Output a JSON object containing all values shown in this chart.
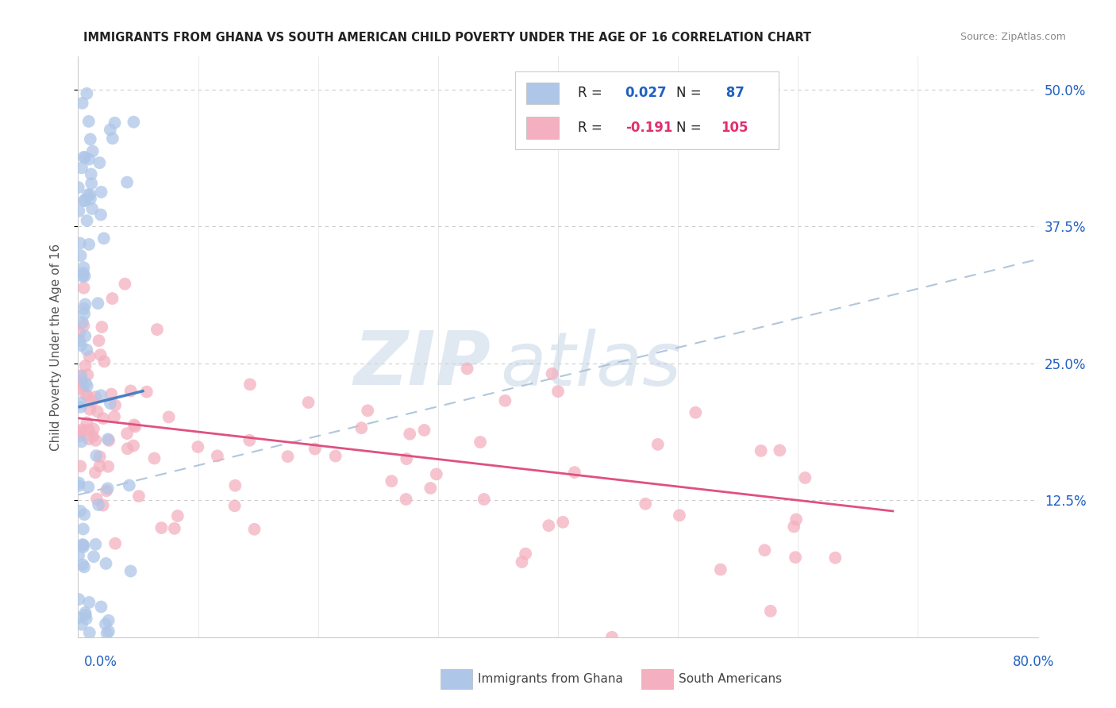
{
  "title": "IMMIGRANTS FROM GHANA VS SOUTH AMERICAN CHILD POVERTY UNDER THE AGE OF 16 CORRELATION CHART",
  "source": "Source: ZipAtlas.com",
  "ylabel": "Child Poverty Under the Age of 16",
  "color_ghana": "#aec6e8",
  "color_south_am": "#f4b0c0",
  "color_ghana_line": "#4a7fc1",
  "color_south_am_line": "#e05080",
  "color_r_blue": "#2060c0",
  "color_r_pink": "#e03070",
  "color_dashed": "#a8c0d8",
  "xlim": [
    0.0,
    0.8
  ],
  "ylim": [
    0.0,
    0.53
  ],
  "yticks": [
    0.125,
    0.25,
    0.375,
    0.5
  ],
  "ytick_labels": [
    "12.5%",
    "25.0%",
    "37.5%",
    "50.0%"
  ],
  "watermark_zip": "ZIP",
  "watermark_atlas": "atlas"
}
